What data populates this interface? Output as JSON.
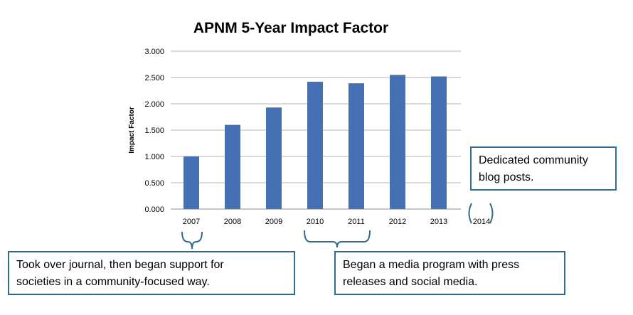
{
  "chart_data": {
    "type": "bar",
    "title": "APNM 5-Year Impact Factor",
    "ylabel": "Impact Factor",
    "xlabel": "",
    "categories": [
      "2007",
      "2008",
      "2009",
      "2010",
      "2011",
      "2012",
      "2013"
    ],
    "values": [
      1.0,
      1.6,
      1.93,
      2.42,
      2.39,
      2.55,
      2.52
    ],
    "ylim": [
      0,
      3
    ],
    "yticks": [
      "0.000",
      "0.500",
      "1.000",
      "1.500",
      "2.000",
      "2.500",
      "3.000"
    ],
    "extra_category": "2014",
    "bar_color": "#4571b4",
    "grid": true
  },
  "annotations": {
    "callout_2014": [
      "Dedicated community",
      "blog posts."
    ],
    "callout_2007": [
      "Took over journal, then began support for",
      "societies in a community-focused way."
    ],
    "callout_2010": [
      "Began a media program with press",
      "releases and social media."
    ],
    "callout_color": "#2e6b8e"
  }
}
